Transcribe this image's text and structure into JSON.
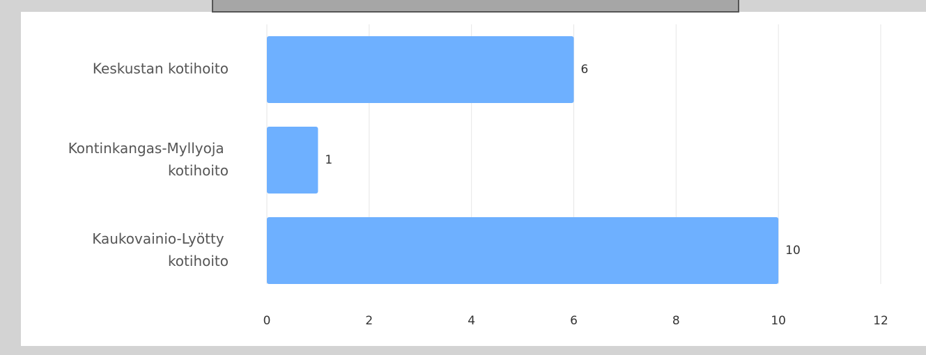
{
  "chart_data": {
    "type": "bar",
    "orientation": "horizontal",
    "categories": [
      "Keskustan kotihoito",
      "Kontinkangas-Myllyoja kotihoito",
      "Kaukovainio-Lyötty kotihoito"
    ],
    "values": [
      6,
      1,
      10
    ],
    "color": "#6eb0ff",
    "xlim": [
      0,
      12
    ],
    "xticks": [
      0,
      2,
      4,
      6,
      8,
      10,
      12
    ],
    "grid": true
  }
}
